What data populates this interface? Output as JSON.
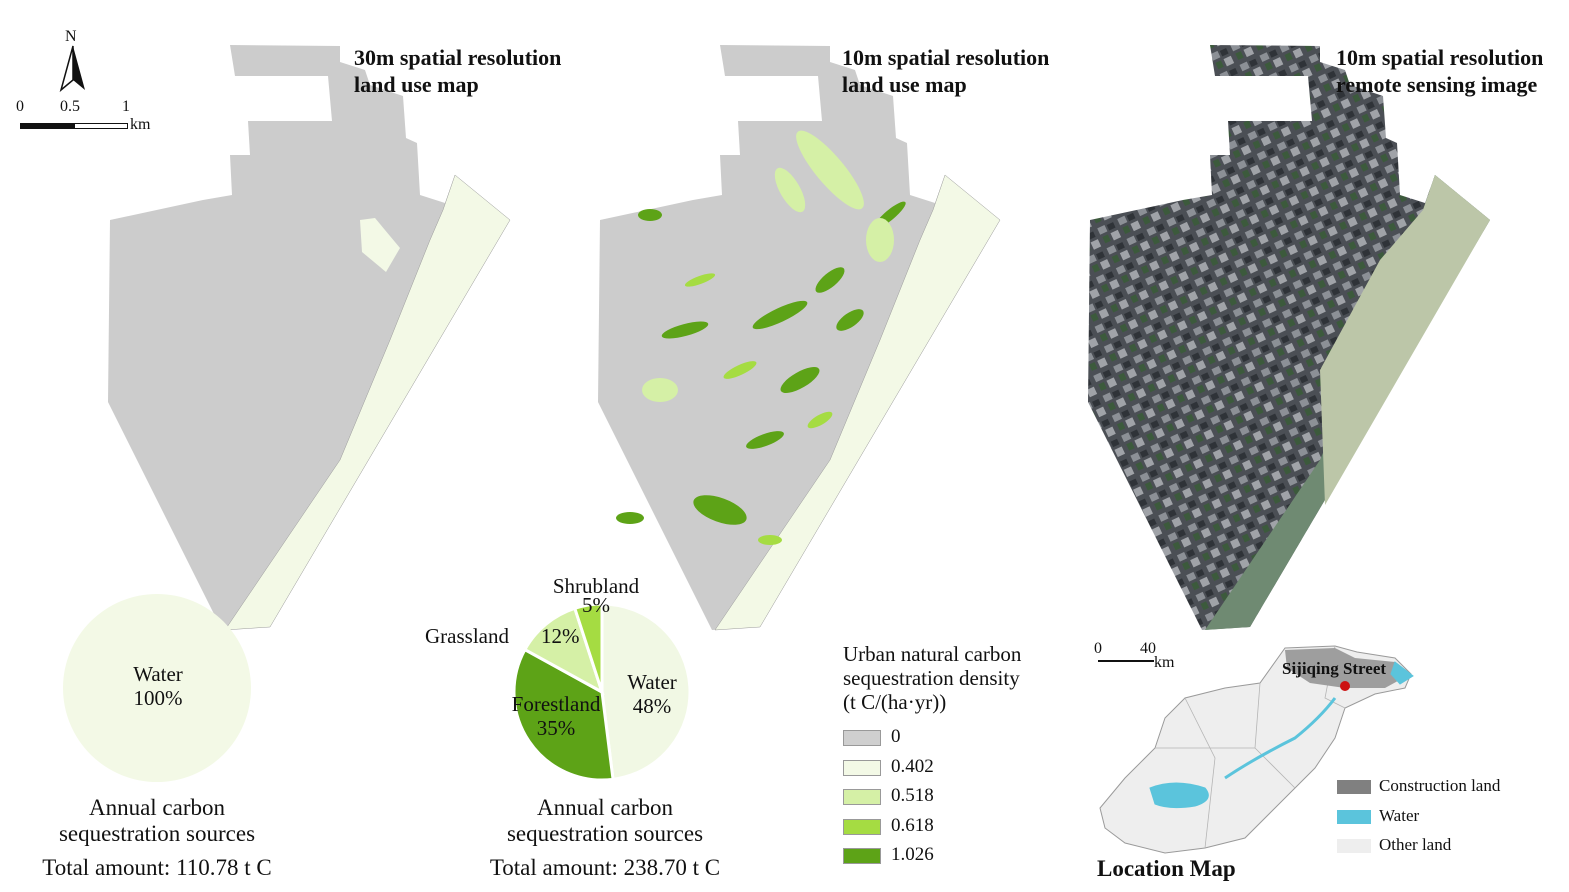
{
  "north_arrow": {
    "letter": "N"
  },
  "scalebar_main": {
    "ticks": [
      "0",
      "0.5",
      "1"
    ],
    "unit": "km"
  },
  "panels": {
    "map30": {
      "title_line1": "30m spatial resolution",
      "title_line2": "land use map"
    },
    "map10": {
      "title_line1": "10m spatial resolution",
      "title_line2": "land use map"
    },
    "rs": {
      "title_line1": "10m spatial resolution",
      "title_line2": "remote sensing image"
    }
  },
  "pie1": {
    "slices": [
      {
        "name": "Water",
        "pct": "100%",
        "value": 100,
        "color": "#f3f9e6"
      }
    ],
    "caption_line1": "Annual carbon",
    "caption_line2": "sequestration sources",
    "total": "Total amount: 110.78 t C"
  },
  "pie2": {
    "slices": [
      {
        "name": "Water",
        "pct": "48%",
        "value": 48,
        "color": "#f1f8e4"
      },
      {
        "name": "Forestland",
        "pct": "35%",
        "value": 35,
        "color": "#5da317"
      },
      {
        "name": "Grassland",
        "pct": "12%",
        "value": 12,
        "color": "#d5f0a6"
      },
      {
        "name": "Shrubland",
        "pct": "5%",
        "value": 5,
        "color": "#a5dc42"
      }
    ],
    "caption_line1": "Annual carbon",
    "caption_line2": "sequestration sources",
    "total": "Total amount: 238.70 t C"
  },
  "legend": {
    "title_line1": "Urban natural carbon",
    "title_line2": "sequestration density",
    "title_line3": "(t C/(ha·yr))",
    "items": [
      {
        "label": "0",
        "color": "#cfcfcf"
      },
      {
        "label": "0.402",
        "color": "#f3f9e6"
      },
      {
        "label": "0.518",
        "color": "#d5f0a6"
      },
      {
        "label": "0.618",
        "color": "#a5dc42"
      },
      {
        "label": "1.026",
        "color": "#5da317"
      }
    ]
  },
  "location_map": {
    "title": "Location Map",
    "scale_ticks": [
      "0",
      "40"
    ],
    "scale_unit": "km",
    "place": "Sijiqing Street",
    "legend": [
      {
        "label": "Construction land",
        "color": "#808080"
      },
      {
        "label": "Water",
        "color": "#5bc4dc"
      },
      {
        "label": "Other land",
        "color": "#eeeeee"
      }
    ]
  }
}
